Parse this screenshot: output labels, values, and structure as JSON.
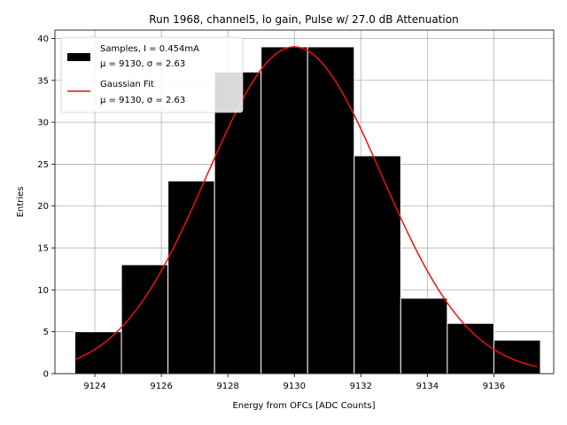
{
  "chart_data": {
    "type": "bar",
    "title": "Run 1968, channel5, lo gain, Pulse w/ 27.0 dB Attenuation",
    "xlabel": "Energy from OFCs [ADC Counts]",
    "ylabel": "Entries",
    "xlim": [
      9122.8,
      9137.8
    ],
    "ylim": [
      0,
      41
    ],
    "xticks": [
      9124,
      9126,
      9128,
      9130,
      9132,
      9134,
      9136
    ],
    "yticks": [
      0,
      5,
      10,
      15,
      20,
      25,
      30,
      35,
      40
    ],
    "grid": true,
    "legend_position": "top-left",
    "histogram": {
      "name": "Samples, I = 0.454mA",
      "stats_label": "μ = 9130, σ = 2.63",
      "color": "#000000",
      "bins": [
        {
          "x0": 9123.4,
          "x1": 9124.8,
          "count": 5
        },
        {
          "x0": 9124.8,
          "x1": 9126.2,
          "count": 13
        },
        {
          "x0": 9126.2,
          "x1": 9127.6,
          "count": 23
        },
        {
          "x0": 9127.6,
          "x1": 9129.0,
          "count": 36
        },
        {
          "x0": 9129.0,
          "x1": 9130.4,
          "count": 39
        },
        {
          "x0": 9130.4,
          "x1": 9131.8,
          "count": 39
        },
        {
          "x0": 9131.8,
          "x1": 9133.2,
          "count": 26
        },
        {
          "x0": 9133.2,
          "x1": 9134.6,
          "count": 9
        },
        {
          "x0": 9134.6,
          "x1": 9136.0,
          "count": 6
        },
        {
          "x0": 9136.0,
          "x1": 9137.4,
          "count": 4
        }
      ]
    },
    "fit": {
      "name": "Gaussian Fit",
      "stats_label": "μ = 9130, σ = 2.63",
      "color": "#ee1111",
      "mu": 9130,
      "sigma": 2.63,
      "amplitude": 39,
      "x_range": [
        9123.4,
        9137.3
      ]
    }
  }
}
